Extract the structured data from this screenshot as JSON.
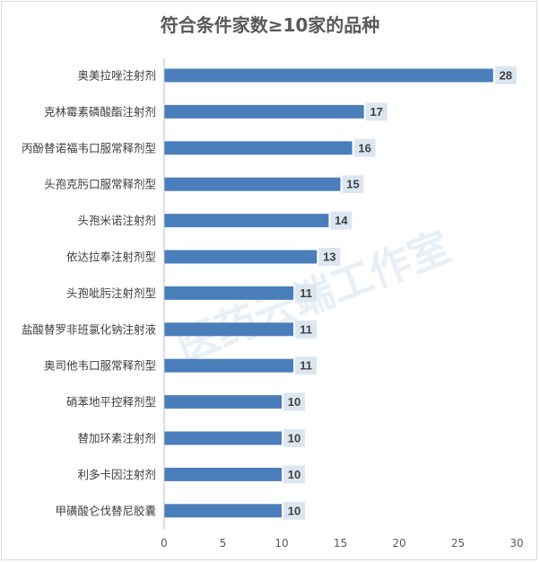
{
  "chart_data": {
    "type": "bar",
    "orientation": "horizontal",
    "title": "符合条件家数≥10家的品种",
    "categories": [
      "奥美拉唑注射剂",
      "克林霉素磷酸酯注射剂",
      "丙酚替诺福韦口服常释剂型",
      "头孢克肟口服常释剂型",
      "头孢米诺注射剂",
      "依达拉奉注射剂型",
      "头孢呲肟注射剂型",
      "盐酸替罗非班氯化钠注射液",
      "奥司他韦口服常释剂型",
      "硝苯地平控释剂型",
      "替加环素注射剂",
      "利多卡因注射剂",
      "甲磺酸仑伐替尼胶囊"
    ],
    "values": [
      28,
      17,
      16,
      15,
      14,
      13,
      11,
      11,
      11,
      10,
      10,
      10,
      10
    ],
    "xlim": [
      0,
      30
    ],
    "xticks": [
      "0",
      "5",
      "10",
      "15",
      "20",
      "25",
      "30"
    ],
    "grid": false,
    "legend": "none",
    "bar_color": "#4a7ebb",
    "label_bg_color": "#dce6f1"
  },
  "watermark": "医药云端工作室"
}
